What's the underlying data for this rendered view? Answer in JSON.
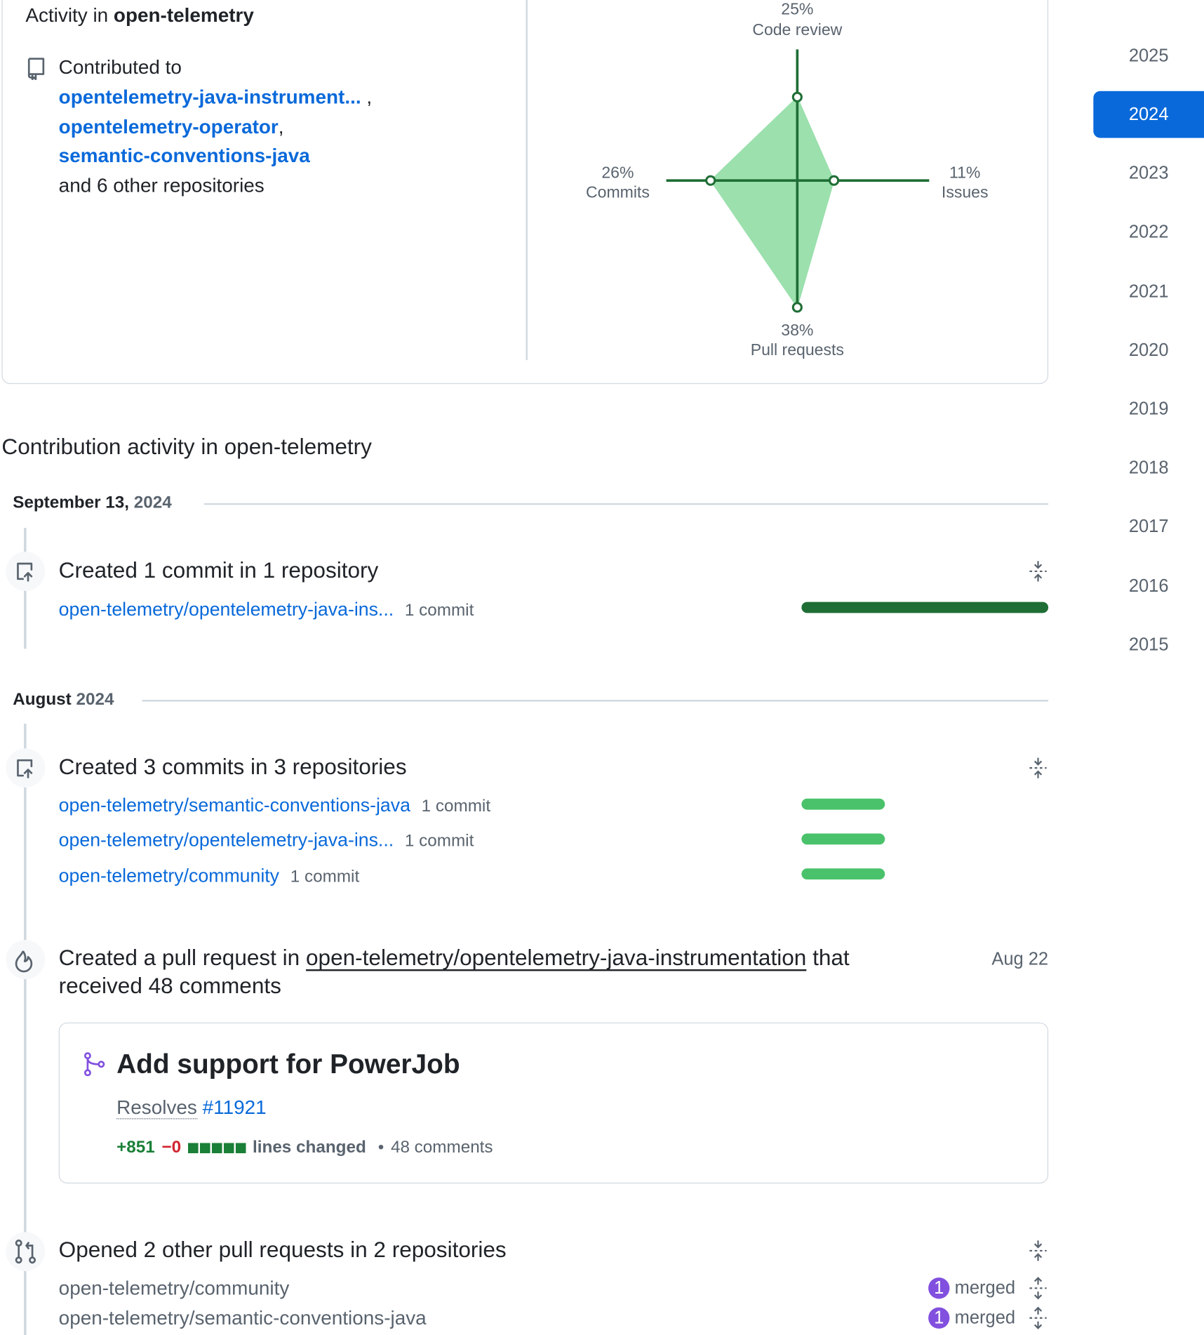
{
  "activity_overview": {
    "title_prefix": "Activity in",
    "org": "open-telemetry",
    "contributed_to": "Contributed to",
    "repositories": [
      {
        "name": "opentelemetry-java-instrument...",
        "separator": ","
      },
      {
        "name": "opentelemetry-operator",
        "separator": ","
      },
      {
        "name": "semantic-conventions-java"
      }
    ],
    "others": "and 6 other repositories",
    "radar": [
      {
        "name": "Code review",
        "value": 25,
        "label": "25%"
      },
      {
        "name": "Issues",
        "value": 11,
        "label": "11%"
      },
      {
        "name": "Pull requests",
        "value": 38,
        "label": "38%"
      },
      {
        "name": "Commits",
        "value": 26,
        "label": "26%"
      }
    ]
  },
  "years": [
    {
      "label": "2025"
    },
    {
      "label": "2024",
      "selected": true
    },
    {
      "label": "2023"
    },
    {
      "label": "2022"
    },
    {
      "label": "2021"
    },
    {
      "label": "2020"
    },
    {
      "label": "2019"
    },
    {
      "label": "2018"
    },
    {
      "label": "2017"
    },
    {
      "label": "2016"
    },
    {
      "label": "2015"
    }
  ],
  "contribution_heading": "Contribution activity in open-telemetry",
  "timeline": [
    {
      "date": "September 13,",
      "year": "2024",
      "events": [
        {
          "title": "Created 1 commit in 1 repository",
          "repos": [
            {
              "name": "open-telemetry/opentelemetry-java-ins...",
              "count": "1 commit"
            }
          ]
        }
      ]
    },
    {
      "date": "August",
      "year": "2024",
      "events": [
        {
          "title": "Created 3 commits in 3 repositories",
          "repos": [
            {
              "name": "open-telemetry/semantic-conventions-java",
              "count": "1 commit"
            },
            {
              "name": "open-telemetry/opentelemetry-java-ins...",
              "count": "1 commit"
            },
            {
              "name": "open-telemetry/community",
              "count": "1 commit"
            }
          ]
        },
        {
          "title_prefix": "Created a pull request in",
          "repo": "open-telemetry/opentelemetry-java-instrumentation",
          "title_suffix": "that",
          "title_line2": "received 48 comments",
          "date": "Aug 22",
          "card": {
            "title": "Add support for PowerJob",
            "body_prefix": "Resolves",
            "issue": "#11921",
            "additions": "+851",
            "deletions": "−0",
            "lines_changed": "lines changed",
            "comments": "48 comments"
          }
        },
        {
          "title": "Opened 2 other pull requests in 2 repositories",
          "repos": [
            {
              "name": "open-telemetry/community",
              "count": "1",
              "status": "merged"
            },
            {
              "name": "open-telemetry/semantic-conventions-java",
              "count": "1",
              "status": "merged"
            }
          ]
        }
      ]
    }
  ]
}
